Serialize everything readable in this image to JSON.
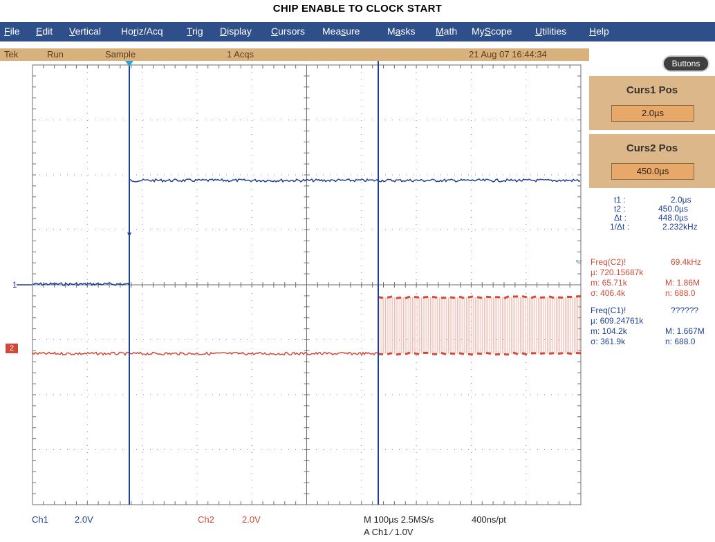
{
  "title": "CHIP ENABLE TO CLOCK START",
  "menu": [
    "File",
    "Edit",
    "Vertical",
    "Horiz/Acq",
    "Trig",
    "Display",
    "Cursors",
    "Measure",
    "Masks",
    "Math",
    "MyScope",
    "Utilities",
    "Help"
  ],
  "menu_underline": [
    0,
    0,
    0,
    2,
    0,
    0,
    0,
    3,
    1,
    0,
    2,
    0,
    0
  ],
  "status": {
    "brand": "Tek",
    "run": "Run",
    "mode": "Sample",
    "acqs": "1 Acqs",
    "datetime": "21 Aug 07 16:44:34"
  },
  "panel": {
    "buttons_label": "Buttons",
    "curs1_label": "Curs1 Pos",
    "curs1_value": "2.0µs",
    "curs2_label": "Curs2 Pos",
    "curs2_value": "450.0µs",
    "t1_label": "t1 :",
    "t1_value": "2.0µs",
    "t2_label": "t2 :",
    "t2_value": "450.0µs",
    "dt_label": "Δt :",
    "dt_value": "448.0µs",
    "inv_dt_label": "1/Δt :",
    "inv_dt_value": "2.232kHz"
  },
  "meas_c2": {
    "name": "Freq(C2)!",
    "value": "69.4kHz",
    "mean": "µ: 720.15687k",
    "min": "m: 65.71k",
    "max": "M: 1.86M",
    "sigma": "σ: 406.4k",
    "n": "n: 688.0"
  },
  "meas_c1": {
    "name": "Freq(C1)!",
    "value": "??????",
    "mean": "µ: 609.24761k",
    "min": "m: 104.2k",
    "max": "M: 1.667M",
    "sigma": "σ: 361.9k",
    "n": "n: 688.0"
  },
  "markers": {
    "ch1": "1",
    "ch2": "2"
  },
  "bottom": {
    "ch1_label": "Ch1",
    "ch1_scale": "2.0V",
    "ch2_label": "Ch2",
    "ch2_scale": "2.0V",
    "timebase": "M 100µs 2.5MS/s",
    "pt": "400ns/pt",
    "trigger": "A  Ch1  ⁄  1.0V"
  },
  "colors": {
    "menu_bg": "#2f4f8a",
    "status_bg": "#d8b17d",
    "panel_box": "#dcb789",
    "ch1": "#1f3f95",
    "ch2": "#d24a37",
    "grid": "#8a8a8a"
  }
}
